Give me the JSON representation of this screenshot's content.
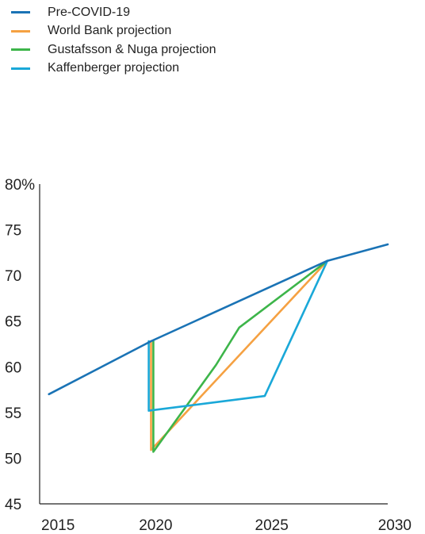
{
  "chart_data": {
    "type": "line",
    "title": "",
    "xlabel": "",
    "ylabel": "",
    "xlim": [
      2015,
      2030
    ],
    "ylim": [
      45,
      80
    ],
    "x_ticks": [
      {
        "value": 2015,
        "label": "2015"
      },
      {
        "value": 2020,
        "label": "2020"
      },
      {
        "value": 2025,
        "label": "2025"
      },
      {
        "value": 2030,
        "label": "2030"
      }
    ],
    "y_ticks": [
      {
        "value": 80,
        "label": "80%"
      },
      {
        "value": 75,
        "label": "75"
      },
      {
        "value": 70,
        "label": "70"
      },
      {
        "value": 65,
        "label": "65"
      },
      {
        "value": 60,
        "label": "60"
      },
      {
        "value": 55,
        "label": "55"
      },
      {
        "value": 50,
        "label": "50"
      },
      {
        "value": 45,
        "label": "45"
      }
    ],
    "grid": false,
    "legend_position": "top-left",
    "series": [
      {
        "name": "Pre-COVID-19",
        "color": "#1a73b5",
        "points": [
          [
            2015.4,
            57.0
          ],
          [
            2019.8,
            62.8
          ],
          [
            2027.4,
            71.6
          ],
          [
            2030.0,
            73.4
          ]
        ]
      },
      {
        "name": "World Bank projection",
        "color": "#f5a142",
        "points": [
          [
            2019.8,
            62.8
          ],
          [
            2019.8,
            50.9
          ],
          [
            2027.4,
            71.6
          ]
        ]
      },
      {
        "name": "Gustafsson & Nuga projection",
        "color": "#3db54a",
        "points": [
          [
            2019.9,
            62.8
          ],
          [
            2019.9,
            50.7
          ],
          [
            2022.6,
            60.2
          ],
          [
            2023.6,
            64.3
          ],
          [
            2027.4,
            71.6
          ]
        ]
      },
      {
        "name": "Kaffenberger projection",
        "color": "#1aa8d8",
        "points": [
          [
            2019.7,
            62.8
          ],
          [
            2019.7,
            55.2
          ],
          [
            2024.7,
            56.8
          ],
          [
            2027.4,
            71.6
          ]
        ]
      }
    ]
  }
}
